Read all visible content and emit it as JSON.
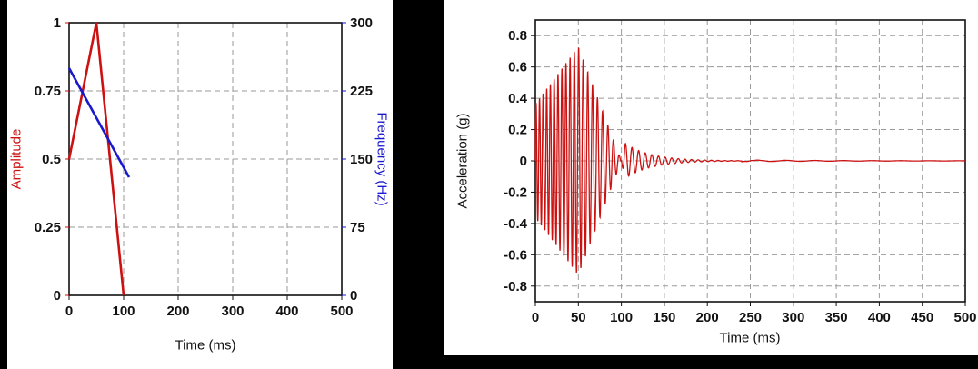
{
  "page": {
    "background": "#000000",
    "panel_background": "#ffffff"
  },
  "chart_data": [
    {
      "type": "line",
      "xlabel": "Time (ms)",
      "xlim": [
        0,
        500
      ],
      "xticks": [
        0,
        100,
        200,
        300,
        400,
        500
      ],
      "grid": true,
      "left_axis": {
        "label": "Amplitude",
        "color": "#cc1111",
        "lim": [
          0,
          1
        ],
        "ticks": [
          0,
          0.25,
          0.5,
          0.75,
          1
        ]
      },
      "right_axis": {
        "label": "Frequency (Hz)",
        "color": "#1818cc",
        "lim": [
          0,
          300
        ],
        "ticks": [
          0,
          75,
          150,
          225,
          300
        ]
      },
      "series": [
        {
          "name": "amplitude-envelope",
          "axis": "left",
          "color": "#cc1111",
          "points": [
            [
              0,
              0.5
            ],
            [
              50,
              1
            ],
            [
              100,
              0
            ]
          ]
        },
        {
          "name": "frequency-sweep",
          "axis": "right",
          "color": "#1818cc",
          "points": [
            [
              0,
              250
            ],
            [
              110,
              130
            ]
          ]
        }
      ]
    },
    {
      "type": "line",
      "xlabel": "Time (ms)",
      "ylabel": "Acceleration (g)",
      "xlim": [
        0,
        500
      ],
      "ylim": [
        -0.9,
        0.9
      ],
      "xticks": [
        0,
        50,
        100,
        150,
        200,
        250,
        300,
        350,
        400,
        450,
        500
      ],
      "yticks": [
        0.8,
        0.6,
        0.4,
        0.2,
        0,
        -0.2,
        -0.4,
        -0.6,
        -0.8
      ],
      "grid": true,
      "line_color": "#cc1111",
      "signal": {
        "description": "linear-sweep sine burst with triangular envelope and decaying ring-out",
        "peak_g": 0.73,
        "envelope_points": [
          [
            0,
            0.5
          ],
          [
            50,
            1
          ],
          [
            100,
            0
          ]
        ],
        "freq_sweep_hz": [
          250,
          130
        ],
        "sweep_ms": [
          0,
          110
        ],
        "ring": {
          "start_ms": 100,
          "amp_g": 0.13,
          "decay_ms": 30,
          "freq_hz": 130,
          "end_ms": 240
        }
      }
    }
  ]
}
